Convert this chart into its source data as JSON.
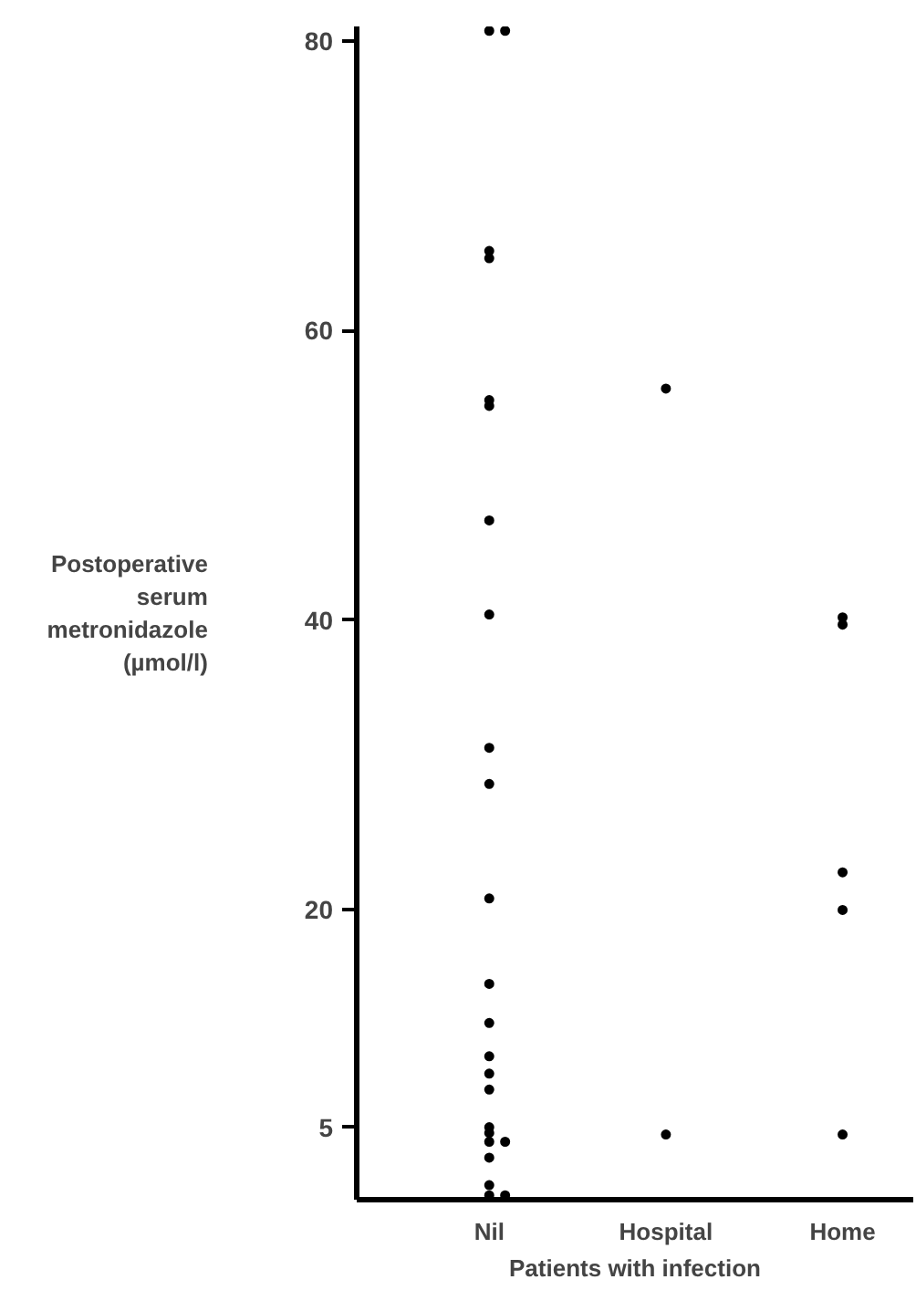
{
  "chart_data": {
    "type": "scatter",
    "xlabel": "Patients with infection",
    "ylabel": "Postoperative\nserum\nmetronidazole\n(µmol/l)",
    "categories": [
      "Nil",
      "Hospital",
      "Home"
    ],
    "series": [
      {
        "color": "#000000",
        "x": [
          "Nil",
          "Nil",
          "Nil",
          "Nil",
          "Nil",
          "Nil",
          "Nil",
          "Nil",
          "Nil",
          "Nil",
          "Nil",
          "Nil",
          "Nil",
          "Nil",
          "Nil",
          "Nil",
          "Nil",
          "Nil",
          "Nil",
          "Nil",
          "Nil",
          "Nil",
          "Nil",
          "Nil"
        ],
        "values": [
          80.7,
          80.7,
          65.5,
          65.0,
          55.2,
          54.8,
          46.9,
          40.4,
          31.2,
          28.7,
          20.8,
          14.9,
          12.2,
          9.9,
          8.7,
          7.6,
          5.0,
          4.6,
          4.0,
          4.0,
          2.9,
          1.0,
          0.3,
          0.3
        ]
      },
      {
        "color": "#000000",
        "x": [
          "Hospital",
          "Hospital"
        ],
        "values": [
          56.0,
          4.5
        ]
      },
      {
        "color": "#000000",
        "x": [
          "Home",
          "Home",
          "Home",
          "Home",
          "Home"
        ],
        "values": [
          40.2,
          39.7,
          22.6,
          20.0,
          4.5
        ]
      }
    ],
    "ylim": [
      0,
      81
    ],
    "yticks": [
      5,
      20,
      40,
      60,
      80
    ],
    "grid": false,
    "marker": "circle"
  }
}
